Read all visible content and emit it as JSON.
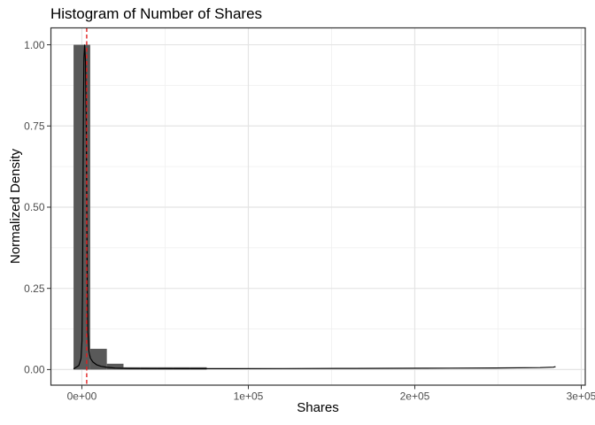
{
  "chart_data": {
    "type": "bar",
    "subtype": "histogram-with-density",
    "title": "Histogram of Number of Shares",
    "xlabel": "Shares",
    "ylabel": "Normalized Density",
    "xlim": [
      -18600,
      302400
    ],
    "ylim": [
      -0.048,
      1.052
    ],
    "grid": "on",
    "legend": "none",
    "x_ticks": [
      {
        "value": 0,
        "label": "0e+00"
      },
      {
        "value": 100000,
        "label": "1e+05"
      },
      {
        "value": 200000,
        "label": "2e+05"
      },
      {
        "value": 300000,
        "label": "3e+05"
      }
    ],
    "x_minor_ticks": [
      50000,
      150000,
      250000
    ],
    "y_ticks": [
      {
        "value": 0.0,
        "label": "0.00"
      },
      {
        "value": 0.25,
        "label": "0.25"
      },
      {
        "value": 0.5,
        "label": "0.50"
      },
      {
        "value": 0.75,
        "label": "0.75"
      },
      {
        "value": 1.0,
        "label": "1.00"
      }
    ],
    "y_minor_ticks": [
      0.125,
      0.375,
      0.625,
      0.875
    ],
    "bins": [
      {
        "x0": -5000,
        "x1": 5000,
        "density": 1.0
      },
      {
        "x0": 5000,
        "x1": 15000,
        "density": 0.064
      },
      {
        "x0": 15000,
        "x1": 25000,
        "density": 0.018
      },
      {
        "x0": 25000,
        "x1": 35000,
        "density": 0.007
      },
      {
        "x0": 35000,
        "x1": 45000,
        "density": 0.007
      },
      {
        "x0": 45000,
        "x1": 55000,
        "density": 0.007
      },
      {
        "x0": 55000,
        "x1": 65000,
        "density": 0.007
      },
      {
        "x0": 65000,
        "x1": 75000,
        "density": 0.007
      }
    ],
    "density_curve": [
      [
        -4787,
        0.0027
      ],
      [
        -1862,
        0.0123
      ],
      [
        -532,
        0.0341
      ],
      [
        53,
        0.0886
      ],
      [
        372,
        0.2384
      ],
      [
        585,
        0.4837
      ],
      [
        904,
        0.7834
      ],
      [
        1223,
        0.9605
      ],
      [
        1649,
        0.9992
      ],
      [
        2181,
        0.9469
      ],
      [
        2606,
        0.7561
      ],
      [
        2926,
        0.5109
      ],
      [
        3245,
        0.2657
      ],
      [
        3617,
        0.1158
      ],
      [
        4255,
        0.0559
      ],
      [
        5053,
        0.0354
      ],
      [
        6649,
        0.0232
      ],
      [
        8777,
        0.015
      ],
      [
        11436,
        0.0101
      ],
      [
        15160,
        0.0068
      ],
      [
        19947,
        0.0046
      ],
      [
        27926,
        0.0035
      ],
      [
        41223,
        0.003
      ],
      [
        62500,
        0.0027
      ],
      [
        89096,
        0.0027
      ],
      [
        121011,
        0.003
      ],
      [
        163564,
        0.0035
      ],
      [
        206117,
        0.0041
      ],
      [
        248670,
        0.0049
      ],
      [
        275266,
        0.006
      ],
      [
        283245,
        0.0074
      ],
      [
        284300,
        0.0087
      ]
    ],
    "vline": {
      "x": 2900,
      "style": "dashed",
      "color": "#e02020"
    },
    "colors": {
      "bar_fill": "#595959",
      "curve": "#000000",
      "grid_major": "#e4e4e4",
      "grid_minor": "#f0f0f0",
      "panel_border": "#333333",
      "tick_mark": "#333333",
      "tick_label": "#4d4d4d",
      "background": "#ffffff"
    }
  }
}
